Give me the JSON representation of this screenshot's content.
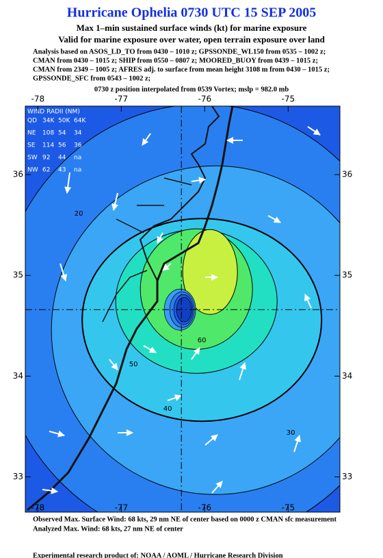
{
  "chart_data": {
    "type": "contour_map",
    "title": "Hurricane Ophelia 0730 UTC 15 SEP 2005",
    "subtitle": "Max 1–min sustained surface winds (kt) for marine exposure",
    "subtitle2": "Valid for marine exposure over water, open terrain exposure over land",
    "analysis_lines": [
      "Analysis based on  ASOS_LD_TO from 0430 – 1010 z;  GPSSONDE_WL150 from 0535 – 1002 z;",
      "CMAN from 0430 – 1015 z;  SHIP from 0550 – 0807 z;  MOORED_BUOY from 0439 – 1015 z;",
      "CMAN from 2349 – 1005 z;  AFRES adj. to surface from mean height 3108 m from 0430 – 1015 z;",
      "GPSSONDE_SFC from 0543 – 1002 z;"
    ],
    "position_note": "0730 z position interpolated from 0539 Vortex; mslp = 982.0 mb",
    "wind_radii": {
      "title": "WIND RADII (NM)",
      "header": [
        "QD",
        "34K",
        "50K",
        "64K"
      ],
      "rows": [
        [
          "NE",
          "108",
          "54",
          "34"
        ],
        [
          "SE",
          "114",
          "56",
          "36"
        ],
        [
          "SW",
          "92",
          "44",
          "na"
        ],
        [
          "NW",
          "62",
          "43",
          "na"
        ]
      ]
    },
    "xlim": [
      -78.15,
      -74.38
    ],
    "ylim": [
      32.65,
      36.68
    ],
    "xticks": [
      -78,
      -77,
      -76,
      -75
    ],
    "yticks": [
      33,
      34,
      35,
      36
    ],
    "center": {
      "lon": -76.28,
      "lat": 34.66
    },
    "contours": [
      {
        "level": 20,
        "color": "#2a7ff0"
      },
      {
        "level": 30,
        "color": "#3aa6f5"
      },
      {
        "level": 40,
        "color": "#35c6ee"
      },
      {
        "level": 50,
        "color": "#22dfc4"
      },
      {
        "level": 60,
        "color": "#4fe86a"
      },
      {
        "level": 65,
        "color": "#c8f040"
      }
    ],
    "footer": [
      "Observed Max. Surface Wind: 68 kts, 29 nm NE of center based on 0000 z CMAN sfc measurement",
      "Analyzed Max. Wind: 68 kts, 27 nm NE of center",
      "Experimental research product of: NOAA / AOML / Hurricane Research Division"
    ]
  }
}
